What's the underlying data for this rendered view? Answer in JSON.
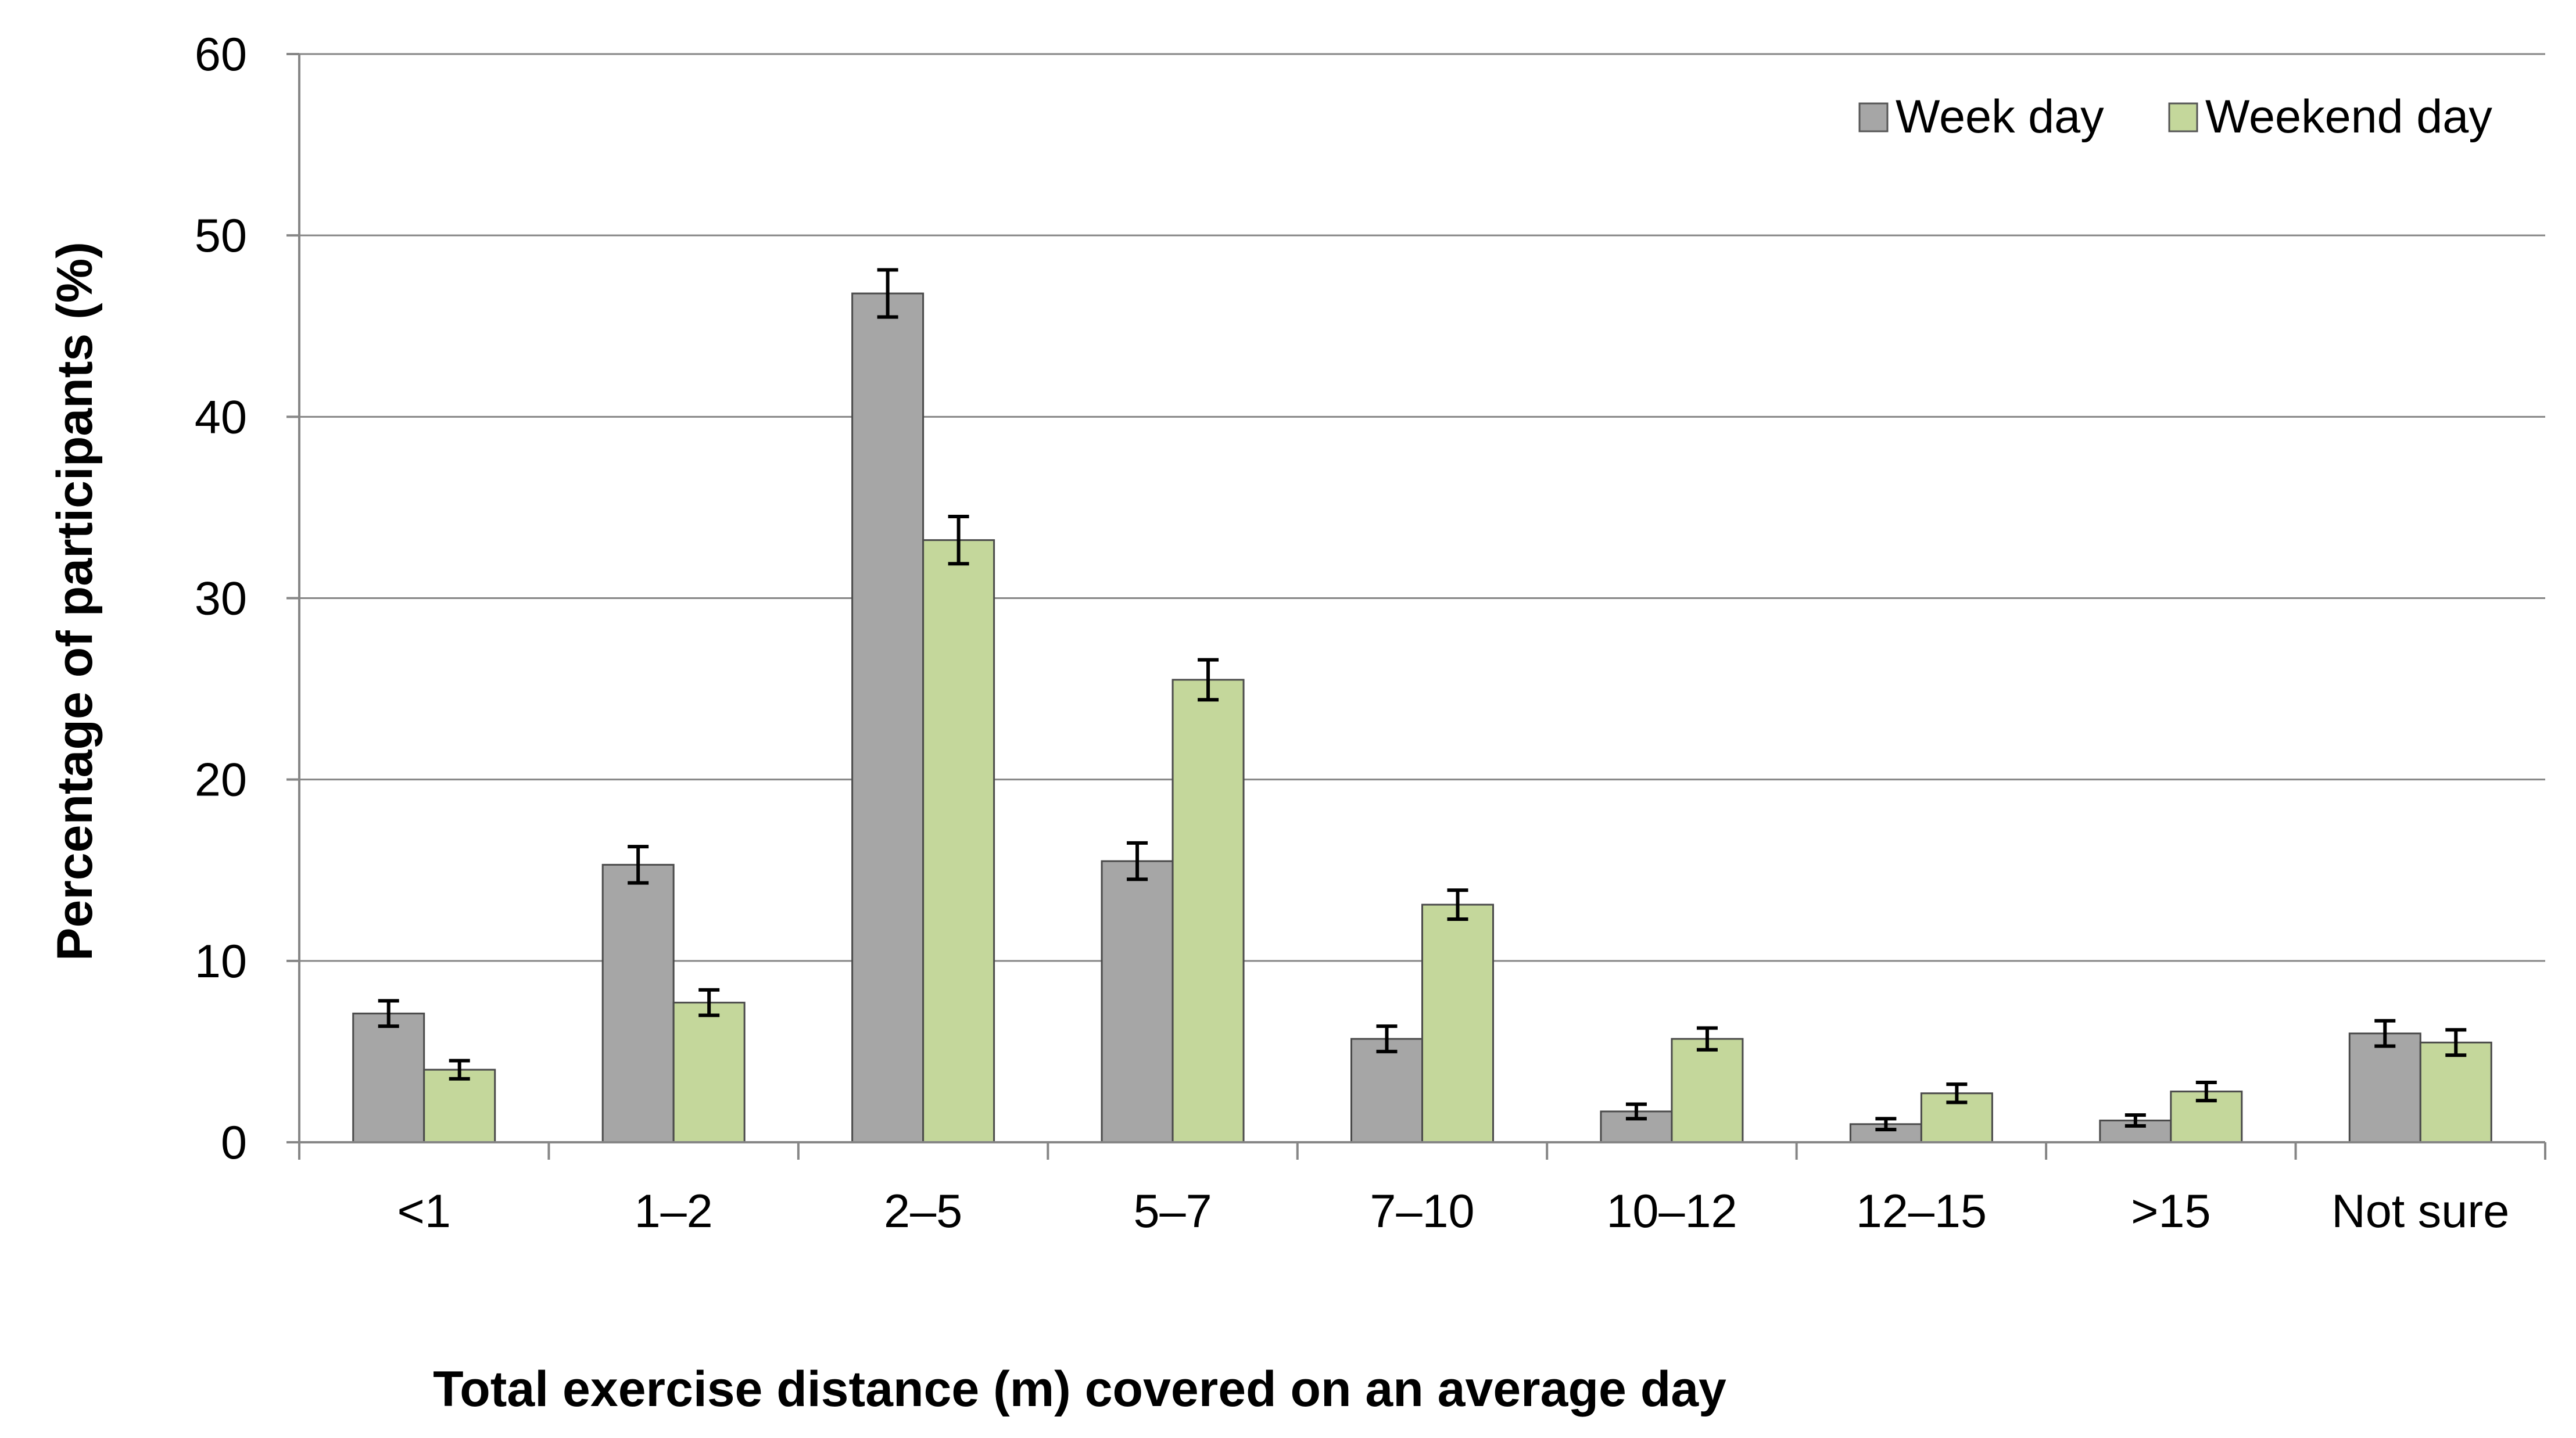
{
  "chart_data": {
    "type": "bar",
    "title": "",
    "xlabel": "Total exercise distance (m) covered on an average day",
    "ylabel": "Percentage of participants (%)",
    "ylim": [
      0,
      60
    ],
    "yticks": [
      0,
      10,
      20,
      30,
      40,
      50,
      60
    ],
    "grid": true,
    "legend_position": "top-right",
    "categories": [
      "<1",
      "1–2",
      "2–5",
      "5–7",
      "7–10",
      "10–12",
      "12–15",
      ">15",
      "Not sure"
    ],
    "series": [
      {
        "name": "Week day",
        "color": "#a6a6a6",
        "values": [
          7.1,
          15.3,
          46.8,
          15.5,
          5.7,
          1.7,
          1.0,
          1.2,
          6.0
        ],
        "errors": [
          0.7,
          1.0,
          1.3,
          1.0,
          0.7,
          0.4,
          0.3,
          0.3,
          0.7
        ]
      },
      {
        "name": "Weekend day",
        "color": "#c4d79b",
        "values": [
          4.0,
          7.7,
          33.2,
          25.5,
          13.1,
          5.7,
          2.7,
          2.8,
          5.5
        ],
        "errors": [
          0.5,
          0.7,
          1.3,
          1.1,
          0.8,
          0.6,
          0.5,
          0.5,
          0.7
        ]
      }
    ]
  }
}
